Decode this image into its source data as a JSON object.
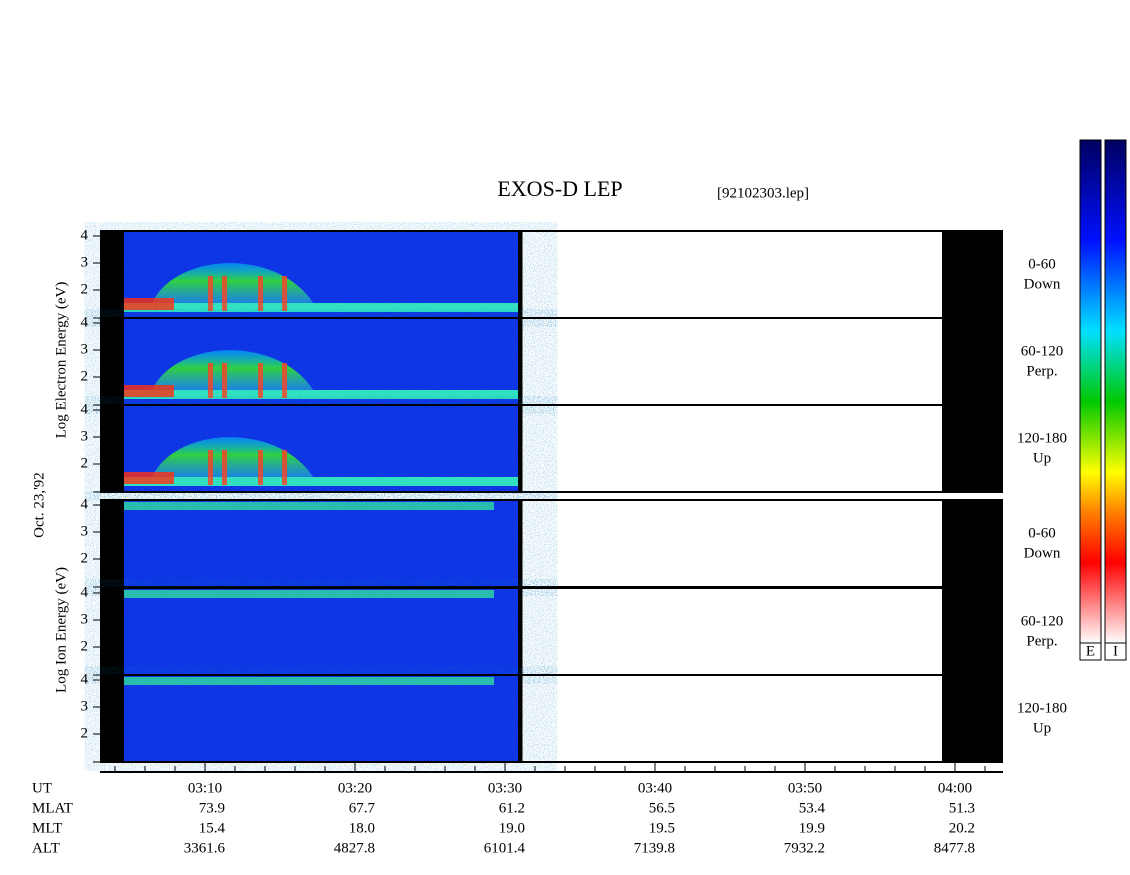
{
  "header": {
    "title": "EXOS-D LEP",
    "file": "[92102303.lep]"
  },
  "date": "Oct. 23,'92",
  "electron_label": "Log Electron Energy (eV)",
  "ion_label": "Log Ion Energy (eV)",
  "panels": [
    {
      "pitch": "0-60",
      "direction": "Down",
      "ticks": [
        "4",
        "3",
        "2"
      ]
    },
    {
      "pitch": "60-120",
      "direction": "Perp.",
      "ticks": [
        "4",
        "3",
        "2"
      ]
    },
    {
      "pitch": "120-180",
      "direction": "Up",
      "ticks": [
        "4",
        "3",
        "2"
      ]
    },
    {
      "pitch": "0-60",
      "direction": "Down",
      "ticks": [
        "4",
        "3",
        "2"
      ]
    },
    {
      "pitch": "60-120",
      "direction": "Perp.",
      "ticks": [
        "4",
        "3",
        "2"
      ]
    },
    {
      "pitch": "120-180",
      "direction": "Up",
      "ticks": [
        "4",
        "3",
        "2"
      ]
    }
  ],
  "ephemeris": {
    "rows": [
      [
        "UT",
        "03:10",
        "03:20",
        "03:30",
        "03:40",
        "03:50",
        "04:00"
      ],
      [
        "MLAT",
        "73.9",
        "67.7",
        "61.2",
        "56.5",
        "53.4",
        "51.3"
      ],
      [
        "MLT",
        "15.4",
        "18.0",
        "19.0",
        "19.5",
        "19.9",
        "20.2"
      ],
      [
        "ALT",
        "3361.6",
        "4827.8",
        "6101.4",
        "7139.8",
        "7932.2",
        "8477.8"
      ]
    ]
  },
  "colorbars": [
    "E",
    "I"
  ]
}
